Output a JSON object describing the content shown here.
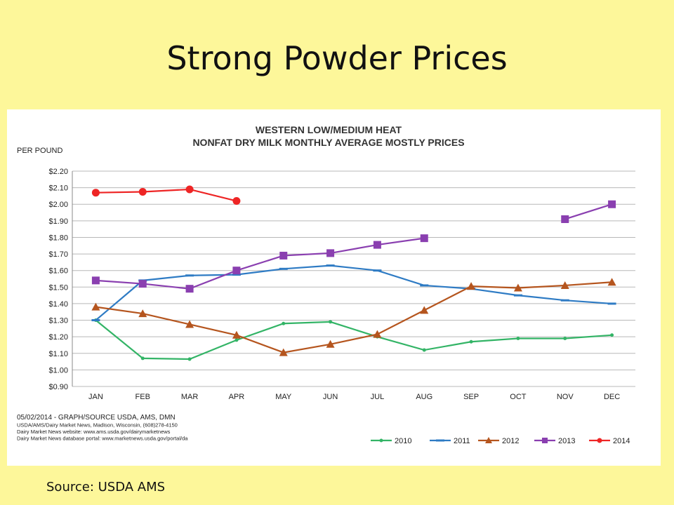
{
  "slide": {
    "title": "Strong Powder Prices",
    "source": "Source: USDA AMS"
  },
  "chart_data": {
    "type": "line",
    "title": "WESTERN LOW/MEDIUM HEAT",
    "subtitle": "NONFAT DRY MILK MONTHLY AVERAGE MOSTLY PRICES",
    "ylabel": "PER POUND",
    "categories": [
      "JAN",
      "FEB",
      "MAR",
      "APR",
      "MAY",
      "JUN",
      "JUL",
      "AUG",
      "SEP",
      "OCT",
      "NOV",
      "DEC"
    ],
    "ylim": [
      0.9,
      2.2
    ],
    "yticks": [
      0.9,
      1.0,
      1.1,
      1.2,
      1.3,
      1.4,
      1.5,
      1.6,
      1.7,
      1.8,
      1.9,
      2.0,
      2.1,
      2.2
    ],
    "ytick_labels": [
      "$0.90",
      "$1.00",
      "$1.10",
      "$1.20",
      "$1.30",
      "$1.40",
      "$1.50",
      "$1.60",
      "$1.70",
      "$1.80",
      "$1.90",
      "$2.00",
      "$2.10",
      "$2.20"
    ],
    "grid": true,
    "legend": "bottom-right",
    "series": [
      {
        "name": "2010",
        "color": "#33b466",
        "marker": "dot",
        "values": [
          1.3,
          1.07,
          1.065,
          1.18,
          1.28,
          1.29,
          1.2,
          1.12,
          1.17,
          1.19,
          1.19,
          1.21
        ]
      },
      {
        "name": "2011",
        "color": "#2e7bc4",
        "marker": "dash",
        "values": [
          1.3,
          1.54,
          1.57,
          1.575,
          1.61,
          1.63,
          1.6,
          1.51,
          1.49,
          1.45,
          1.42,
          1.4
        ]
      },
      {
        "name": "2012",
        "color": "#b5551e",
        "marker": "triangle",
        "values": [
          1.38,
          1.34,
          1.275,
          1.21,
          1.105,
          1.155,
          1.215,
          1.36,
          1.505,
          1.495,
          1.51,
          1.53
        ]
      },
      {
        "name": "2013",
        "color": "#8a3fb0",
        "marker": "square",
        "values": [
          1.54,
          1.52,
          1.49,
          1.6,
          1.69,
          1.705,
          1.755,
          1.795,
          null,
          null,
          1.91,
          2.0
        ]
      },
      {
        "name": "2014",
        "color": "#ee2525",
        "marker": "circle",
        "values": [
          2.07,
          2.075,
          2.09,
          2.02,
          null,
          null,
          null,
          null,
          null,
          null,
          null,
          null
        ]
      }
    ],
    "footnotes": [
      "05/02/2014 - GRAPH/SOURCE USDA, AMS, DMN",
      "USDA/AMS/Dairy Market News, Madison, Wisconsin, (608)278-4150",
      "Dairy Market News website: www.ams.usda.gov/dairymarketnews",
      "Dairy Market News database portal: www.marketnews.usda.gov/portal/da"
    ]
  }
}
